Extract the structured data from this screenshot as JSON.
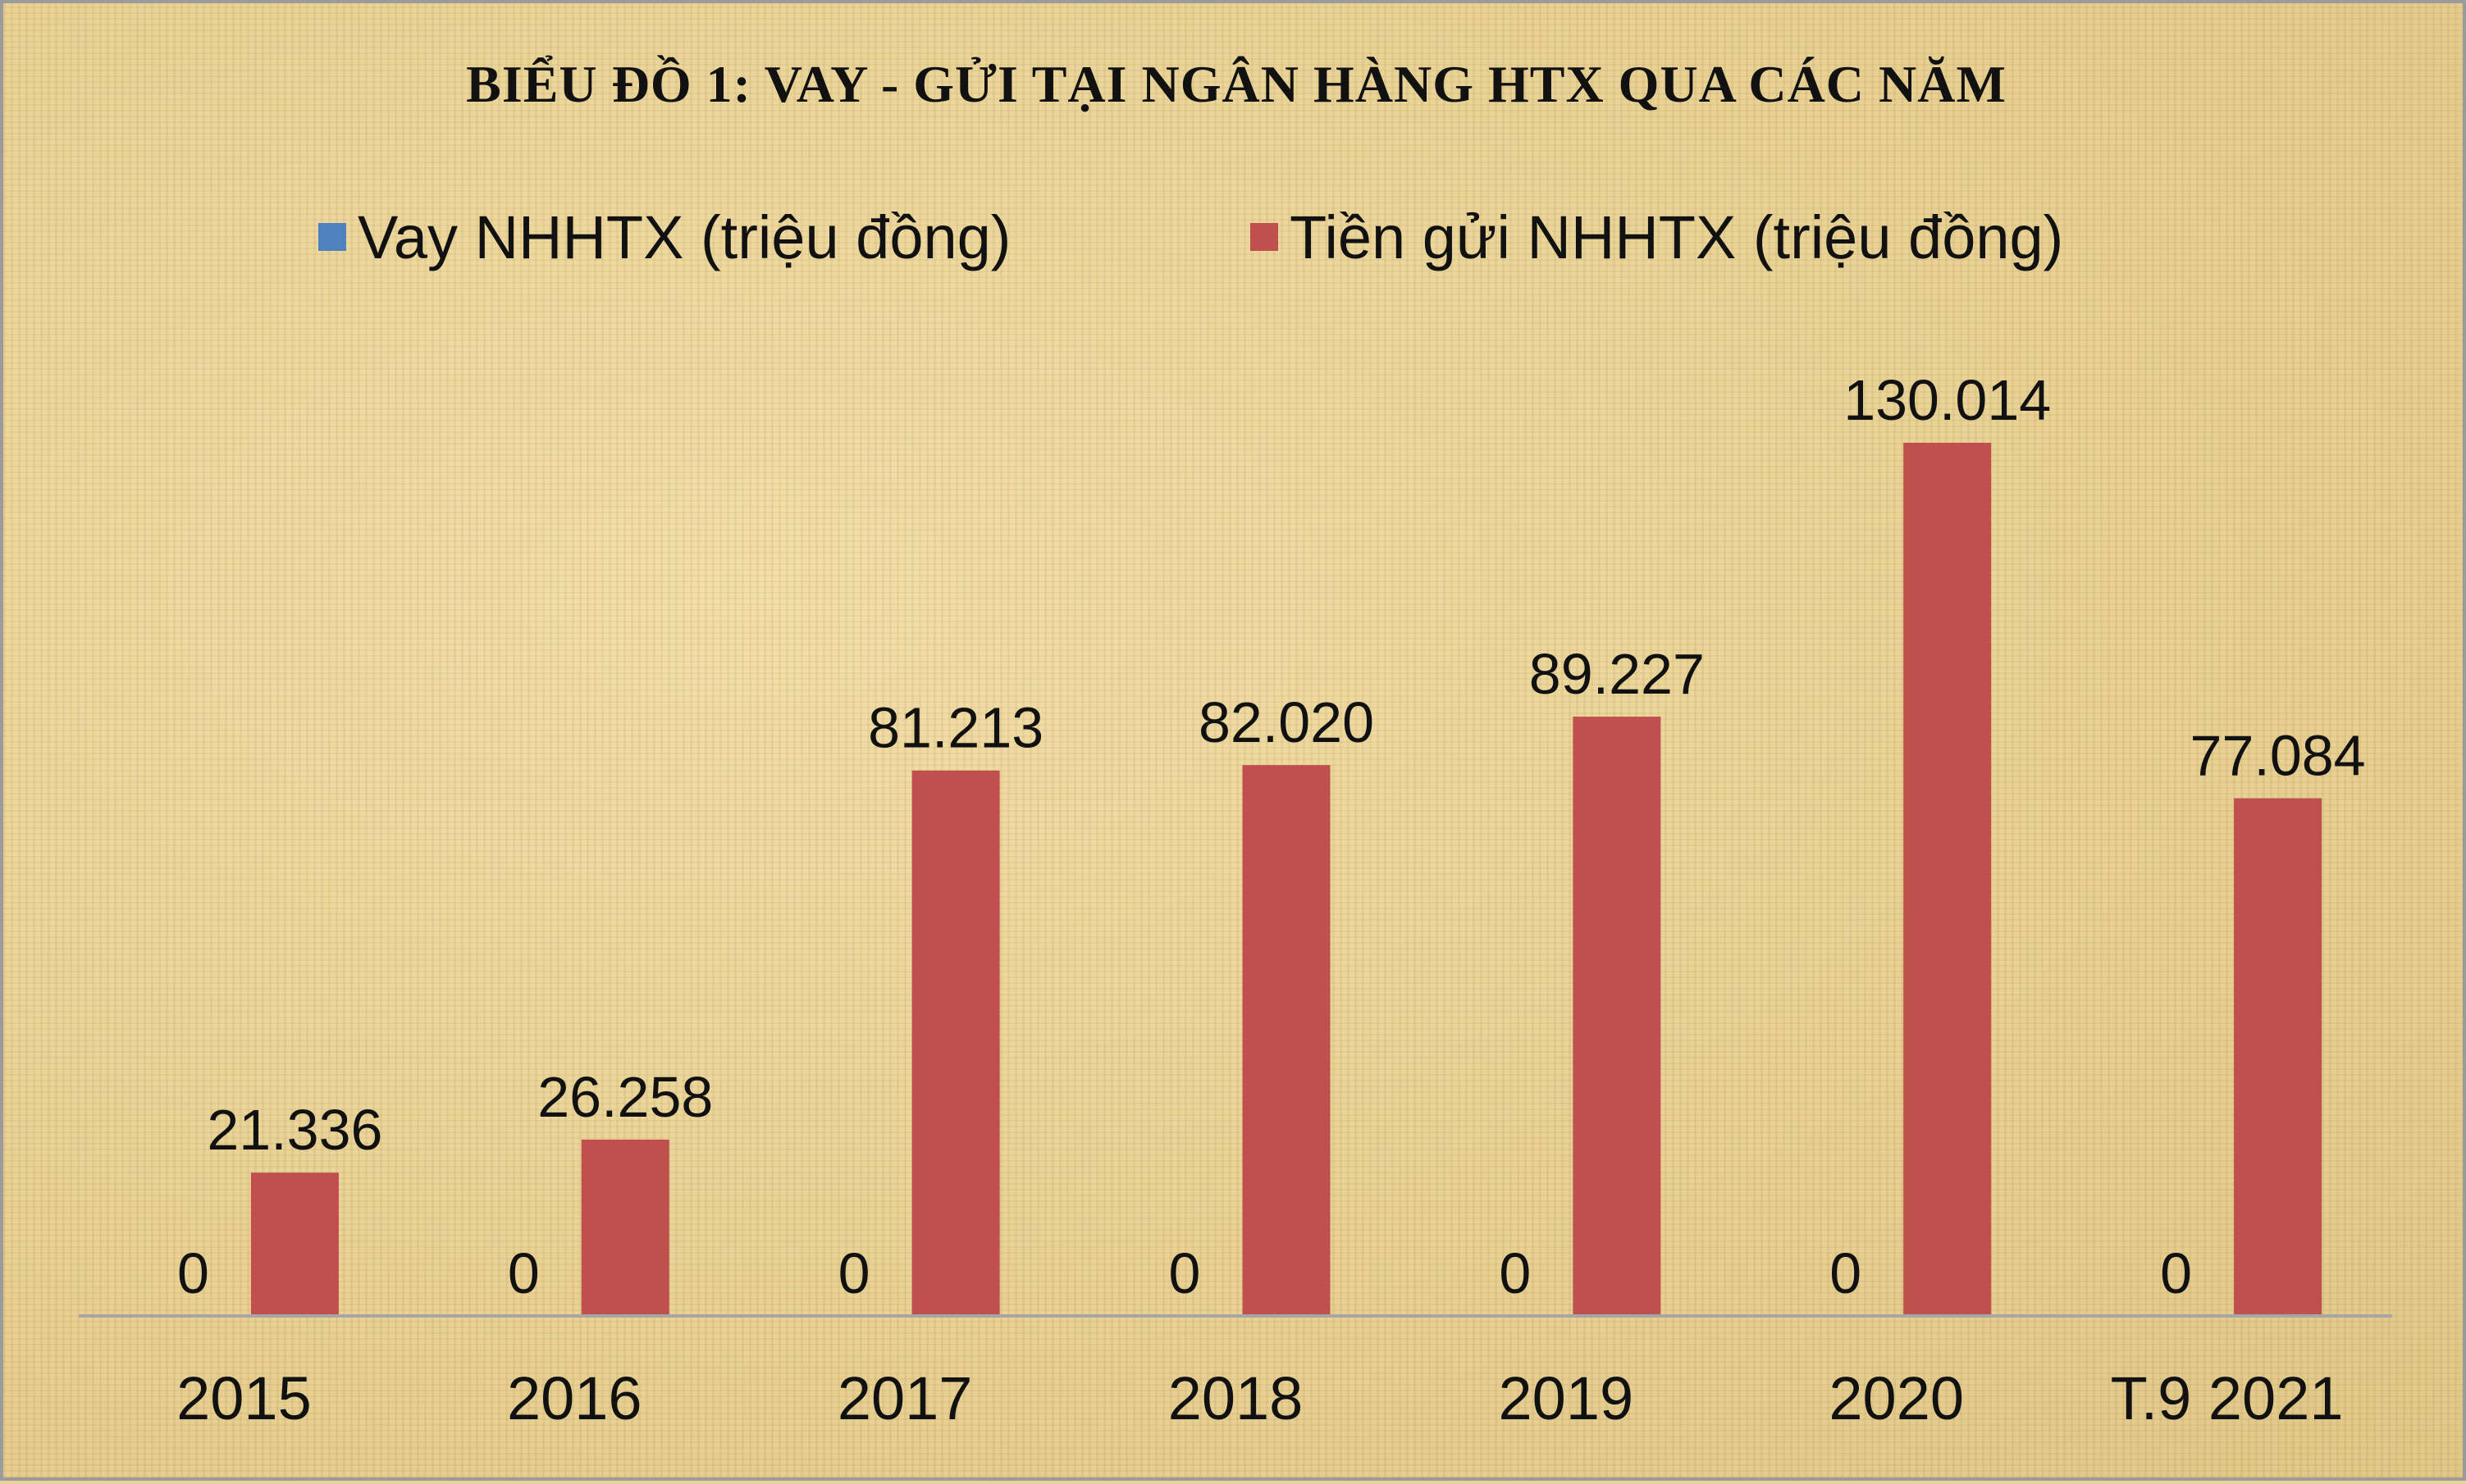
{
  "chart_data": {
    "type": "bar",
    "title": "BIỂU ĐỒ 1: VAY - GỬI TẠI NGÂN HÀNG HTX QUA CÁC NĂM",
    "categories": [
      "2015",
      "2016",
      "2017",
      "2018",
      "2019",
      "2020",
      "T.9 2021"
    ],
    "series": [
      {
        "name": "Vay NHHTX (triệu đồng)",
        "color": "#4f81bd",
        "values": [
          0,
          0,
          0,
          0,
          0,
          0,
          0
        ],
        "labels": [
          "0",
          "0",
          "0",
          "0",
          "0",
          "0",
          "0"
        ]
      },
      {
        "name": "Tiền gửi NHHTX (triệu đồng)",
        "color": "#c0504d",
        "values": [
          21336,
          26258,
          81213,
          82020,
          89227,
          130014,
          77084
        ],
        "labels": [
          "21.336",
          "26.258",
          "81.213",
          "82.020",
          "89.227",
          "130.014",
          "77.084"
        ]
      }
    ],
    "ylim": [
      0,
      150000
    ],
    "legend_position": "top",
    "grid": false,
    "axis_color": "#a6a6a6"
  }
}
